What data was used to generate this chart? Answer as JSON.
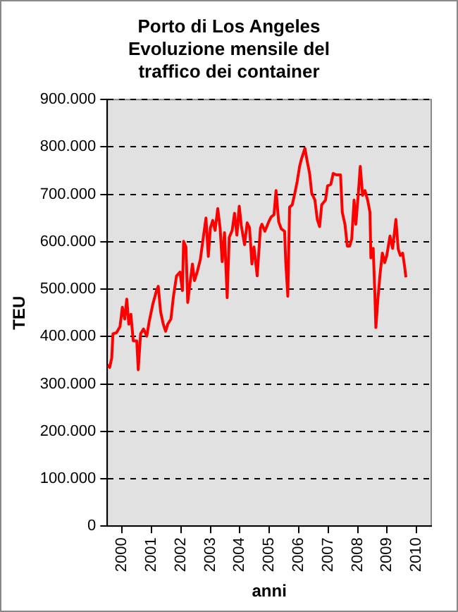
{
  "chart_data": {
    "type": "line",
    "title": "Porto di Los Angeles Evoluzione mensile del traffico dei container",
    "xlabel": "anni",
    "ylabel": "TEU",
    "xlim": [
      2000,
      2011
    ],
    "xticks": [
      {
        "value": 2000.5,
        "label": "2000"
      },
      {
        "value": 2001.5,
        "label": "2001"
      },
      {
        "value": 2002.5,
        "label": "2002"
      },
      {
        "value": 2003.5,
        "label": "2003"
      },
      {
        "value": 2004.5,
        "label": "2004"
      },
      {
        "value": 2005.5,
        "label": "2005"
      },
      {
        "value": 2006.5,
        "label": "2006"
      },
      {
        "value": 2007.5,
        "label": "2007"
      },
      {
        "value": 2008.5,
        "label": "2008"
      },
      {
        "value": 2009.5,
        "label": "2009"
      },
      {
        "value": 2010.5,
        "label": "2010"
      }
    ],
    "ylim": [
      0,
      900000
    ],
    "yticks": [
      0,
      {
        "value": 100000,
        "label": "100.000"
      },
      {
        "value": 200000,
        "label": "200.000"
      },
      {
        "value": 300000,
        "label": "300.000"
      },
      {
        "value": 400000,
        "label": "400.000"
      },
      {
        "value": 500000,
        "label": "500.000"
      },
      {
        "value": 600000,
        "label": "600.000"
      },
      {
        "value": 700000,
        "label": "700.000"
      },
      {
        "value": 800000,
        "label": "800.000"
      },
      {
        "value": 900000,
        "label": "900.000"
      }
    ],
    "grid": "y",
    "series": [
      {
        "color": "#ff0000",
        "x": [
          2000,
          2000.08,
          2000.15,
          2000.19,
          2000.31,
          2000.43,
          2000.51,
          2000.59,
          2000.66,
          2000.73,
          2000.8,
          2000.88,
          2001,
          2001.05,
          2001.13,
          2001.23,
          2001.34,
          2001.42,
          2001.54,
          2001.67,
          2001.73,
          2001.81,
          2001.9,
          2001.98,
          2002.05,
          2002.16,
          2002.24,
          2002.35,
          2002.47,
          2002.55,
          2002.59,
          2002.67,
          2002.73,
          2002.81,
          2002.89,
          2002.96,
          2003.06,
          2003.16,
          2003.27,
          2003.35,
          2003.43,
          2003.5,
          2003.58,
          2003.66,
          2003.75,
          2003.83,
          2003.9,
          2003.98,
          2004.07,
          2004.14,
          2004.24,
          2004.32,
          2004.4,
          2004.48,
          2004.55,
          2004.66,
          2004.75,
          2004.83,
          2004.91,
          2004.98,
          2005.09,
          2005.2,
          2005.25,
          2005.35,
          2005.48,
          2005.56,
          2005.66,
          2005.73,
          2005.82,
          2005.91,
          2006.02,
          2006.06,
          2006.13,
          2006.19,
          2006.28,
          2006.37,
          2006.45,
          2006.53,
          2006.59,
          2006.71,
          2006.79,
          2006.87,
          2006.94,
          2007.05,
          2007.13,
          2007.21,
          2007.28,
          2007.41,
          2007.48,
          2007.59,
          2007.67,
          2007.79,
          2007.92,
          2007.98,
          2008.07,
          2008.15,
          2008.23,
          2008.3,
          2008.38,
          2008.44,
          2008.52,
          2008.59,
          2008.67,
          2008.75,
          2008.84,
          2008.92,
          2008.95,
          2009.03,
          2009.08,
          2009.12,
          2009.19,
          2009.26,
          2009.34,
          2009.42,
          2009.49,
          2009.6,
          2009.69,
          2009.8,
          2009.88,
          2009.95,
          2010.03,
          2010.1,
          2010.14
        ],
        "values": [
          340000,
          335000,
          355000,
          406000,
          408000,
          421000,
          462000,
          437000,
          479000,
          426000,
          447000,
          391000,
          391000,
          330000,
          406000,
          416000,
          401000,
          431000,
          467000,
          497000,
          506000,
          452000,
          426000,
          411000,
          426000,
          437000,
          482000,
          528000,
          536000,
          497000,
          601000,
          589000,
          472000,
          513000,
          553000,
          518000,
          538000,
          563000,
          614000,
          650000,
          569000,
          629000,
          645000,
          624000,
          670000,
          629000,
          558000,
          619000,
          482000,
          609000,
          624000,
          660000,
          614000,
          675000,
          634000,
          594000,
          640000,
          629000,
          553000,
          589000,
          528000,
          629000,
          637000,
          622000,
          642000,
          652000,
          657000,
          708000,
          642000,
          627000,
          622000,
          556000,
          485000,
          673000,
          678000,
          703000,
          728000,
          759000,
          774000,
          797000,
          769000,
          744000,
          703000,
          688000,
          647000,
          632000,
          678000,
          688000,
          718000,
          721000,
          744000,
          741000,
          741000,
          662000,
          637000,
          591000,
          591000,
          606000,
          688000,
          637000,
          698000,
          759000,
          698000,
          708000,
          688000,
          662000,
          566000,
          586000,
          500000,
          419000,
          480000,
          530000,
          576000,
          556000,
          571000,
          612000,
          586000,
          647000,
          584000,
          571000,
          576000,
          546000,
          525000
        ]
      }
    ]
  }
}
